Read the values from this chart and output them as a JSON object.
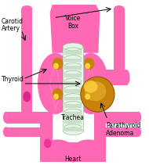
{
  "bg_color": "#ffffff",
  "pink": "#FF69B4",
  "pink_dark": "#E8589A",
  "pink_medium": "#FF85C2",
  "trachea_bg": "#E8F4E8",
  "trachea_ring": "#C8E0C8",
  "trachea_border": "#A0C8A0",
  "gold_dark": "#C8820A",
  "gold_mid": "#DAA020",
  "gold_light": "#FFD040",
  "black": "#000000",
  "carotid_pink": "#FF3399",
  "labels": {
    "carotid": [
      "Carotid",
      "Artery"
    ],
    "voicebox": [
      "Voice",
      "Box"
    ],
    "thyroid": "Thyroid",
    "trachea": "Trachea",
    "parathyroid_line1": "Parathyroid",
    "parathyroid_line2": "Adenoma",
    "heart": "Heart"
  }
}
